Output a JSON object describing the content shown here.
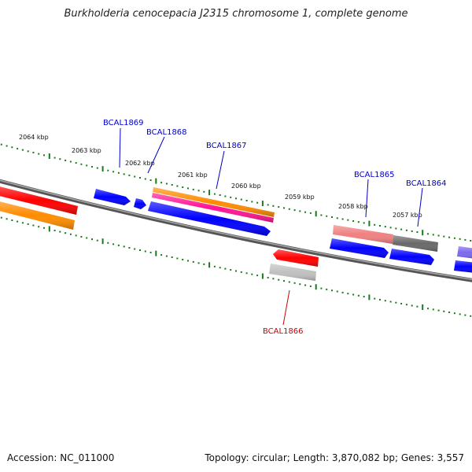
{
  "title": "Burkholderia cenocepacia J2315 chromosome 1, complete genome",
  "footer": {
    "accession": "Accession: NC_011000",
    "topology": "Topology: circular; Length: 3,870,082 bp; Genes: 3,557"
  },
  "colors": {
    "backbone": "#808080",
    "tick": "#1a7a1a",
    "forward_label": "#0000cc",
    "reverse_label": "#cc0000",
    "kbp_text": "#111111"
  },
  "kbp_ticks": [
    "2064 kbp",
    "2063 kbp",
    "2062 kbp",
    "2061 kbp",
    "2060 kbp",
    "2059 kbp",
    "2058 kbp",
    "2057 kbp"
  ],
  "gene_labels": [
    {
      "text": "BCAL1869",
      "strand": "forward"
    },
    {
      "text": "BCAL1868",
      "strand": "forward"
    },
    {
      "text": "BCAL1867",
      "strand": "forward"
    },
    {
      "text": "BCAL1865",
      "strand": "forward"
    },
    {
      "text": "BCAL1864",
      "strand": "forward"
    },
    {
      "text": "BCAL1866",
      "strand": "reverse"
    }
  ],
  "features": [
    {
      "name": "feature-red-left",
      "color": "#ff0000"
    },
    {
      "name": "feature-orange-left",
      "color": "#ff8c00"
    },
    {
      "name": "gene-bcal1869",
      "color": "#0000ff"
    },
    {
      "name": "gene-bcal1868",
      "color": "#0000ff"
    },
    {
      "name": "feature-orange-bcal1867",
      "color": "#ff8c00"
    },
    {
      "name": "feature-pink-bcal1867",
      "color": "#ff1493"
    },
    {
      "name": "gene-bcal1867",
      "color": "#0000ff"
    },
    {
      "name": "feature-lightred-bcal1865",
      "color": "#f08080"
    },
    {
      "name": "gene-bcal1865",
      "color": "#0000ff"
    },
    {
      "name": "feature-gray-bcal1864",
      "color": "#696969"
    },
    {
      "name": "gene-bcal1864",
      "color": "#0000ff"
    },
    {
      "name": "gene-bcal1866",
      "color": "#ff0000"
    },
    {
      "name": "feature-lightgray-bcal1866",
      "color": "#c0c0c0"
    },
    {
      "name": "feature-purple-right",
      "color": "#7b68ee"
    },
    {
      "name": "gene-right-edge",
      "color": "#0000ff"
    }
  ]
}
